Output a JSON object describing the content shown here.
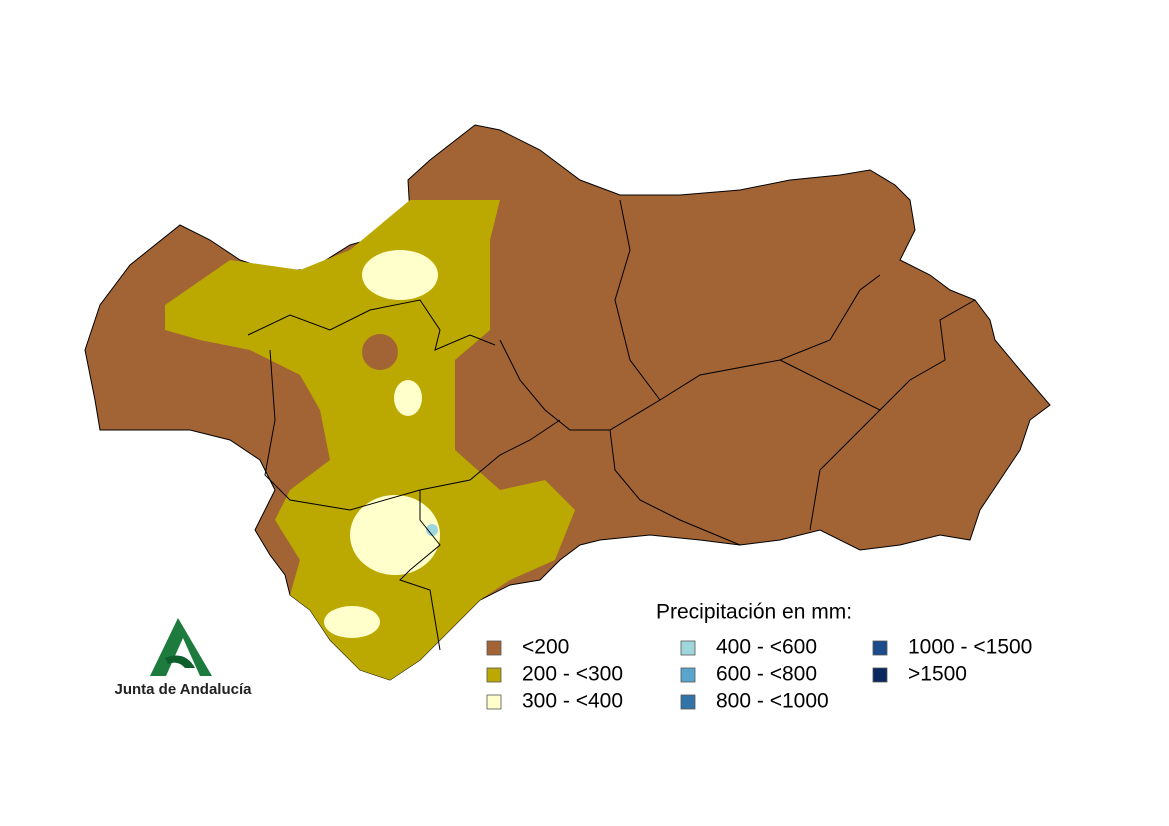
{
  "legend": {
    "title": "Precipitación en mm:",
    "items": [
      {
        "label": "<200",
        "color": "#a26434"
      },
      {
        "label": "200 - <300",
        "color": "#bba800"
      },
      {
        "label": "300 - <400",
        "color": "#ffffcc"
      },
      {
        "label": "400 - <600",
        "color": "#9fd6dd"
      },
      {
        "label": "600 - <800",
        "color": "#5aa5cc"
      },
      {
        "label": "800 - <1000",
        "color": "#3274a8"
      },
      {
        "label": "1000 - <1500",
        "color": "#1c4b8c"
      },
      {
        "label": ">1500",
        "color": "#0a2760"
      }
    ]
  },
  "logo": {
    "text": "Junta de Andalucía"
  }
}
